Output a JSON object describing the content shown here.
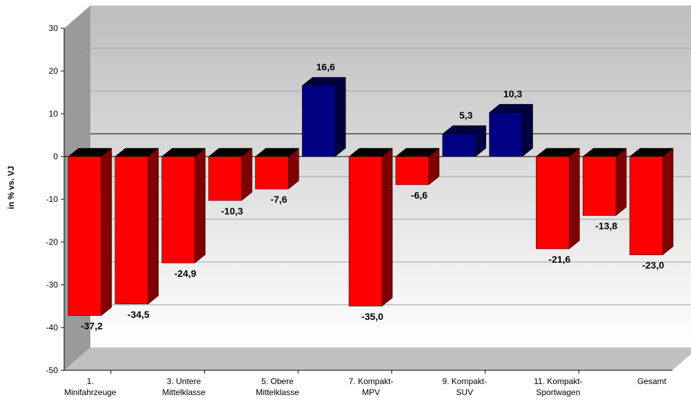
{
  "chart_data": {
    "type": "bar",
    "style": "3d",
    "ylabel": "in % vs. VJ",
    "xlabel": "",
    "title": "",
    "ylim": [
      -50,
      30
    ],
    "yticks": [
      "-50",
      "-40",
      "-30",
      "-20",
      "-10",
      "0",
      "10",
      "20",
      "30"
    ],
    "grid": true,
    "legend": "none",
    "category_labels": [
      [
        "1.",
        "Minifahrzeuge"
      ],
      [
        "3. Untere",
        "Mittelklasse"
      ],
      [
        "5. Obere",
        "Mittelklasse"
      ],
      [
        "7. Kompakt-",
        "MPV"
      ],
      [
        "9. Kompakt-",
        "SUV"
      ],
      [
        "11. Kompakt-",
        "Sportwagen"
      ],
      [
        "Gesamt"
      ]
    ],
    "values": [
      -37.2,
      -34.5,
      -24.9,
      -10.3,
      -7.6,
      16.6,
      -35.0,
      -6.6,
      5.3,
      10.3,
      -21.6,
      -13.8,
      -23.0
    ],
    "value_labels": [
      "-37,2",
      "-34,5",
      "-24,9",
      "-10,3",
      "-7,6",
      "16,6",
      "-35,0",
      "-6,6",
      "5,3",
      "10,3",
      "-21,6",
      "-13,8",
      "-23,0"
    ],
    "colors": {
      "negative_front": "#ff0000",
      "negative_side": "#7f0000",
      "positive_front": "#000080",
      "positive_side": "#000040",
      "top": "#000000",
      "wall": "#d4d4d4",
      "floor": "#c0c0c0",
      "gridline": "#a0a0a0"
    }
  }
}
